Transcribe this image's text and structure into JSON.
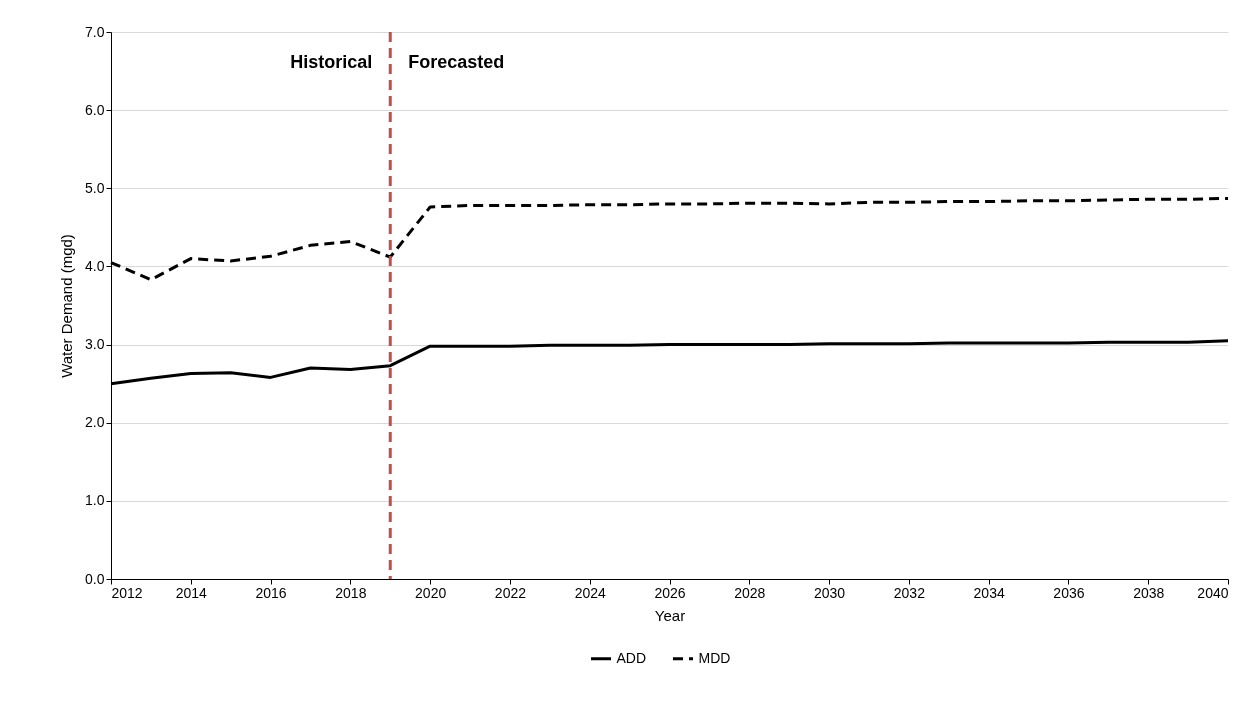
{
  "chart_data": {
    "type": "line",
    "xlabel": "Year",
    "ylabel": "Water Demand (mgd)",
    "x": [
      2012,
      2013,
      2014,
      2015,
      2016,
      2017,
      2018,
      2019,
      2020,
      2021,
      2022,
      2023,
      2024,
      2025,
      2026,
      2027,
      2028,
      2029,
      2030,
      2031,
      2032,
      2033,
      2034,
      2035,
      2036,
      2037,
      2038,
      2039,
      2040
    ],
    "series": [
      {
        "name": "ADD",
        "color": "#000000",
        "line_style": "solid",
        "values": [
          2.5,
          2.57,
          2.63,
          2.64,
          2.58,
          2.7,
          2.68,
          2.73,
          2.98,
          2.98,
          2.98,
          2.99,
          2.99,
          2.99,
          3.0,
          3.0,
          3.0,
          3.0,
          3.01,
          3.01,
          3.01,
          3.02,
          3.02,
          3.02,
          3.02,
          3.03,
          3.03,
          3.03,
          3.05
        ]
      },
      {
        "name": "MDD",
        "color": "#000000",
        "line_style": "dashed",
        "values": [
          4.05,
          3.83,
          4.1,
          4.07,
          4.13,
          4.27,
          4.32,
          4.12,
          4.76,
          4.78,
          4.78,
          4.78,
          4.79,
          4.79,
          4.8,
          4.8,
          4.81,
          4.81,
          4.8,
          4.82,
          4.82,
          4.83,
          4.83,
          4.84,
          4.84,
          4.85,
          4.86,
          4.86,
          4.87
        ]
      }
    ],
    "xlim": [
      2012,
      2040
    ],
    "xticks": [
      2012,
      2014,
      2016,
      2018,
      2020,
      2022,
      2024,
      2026,
      2028,
      2030,
      2032,
      2034,
      2036,
      2038,
      2040
    ],
    "ylim": [
      0,
      7
    ],
    "yticks": [
      {
        "value": 0,
        "label": "0.0"
      },
      {
        "value": 1,
        "label": "1.0"
      },
      {
        "value": 2,
        "label": "2.0"
      },
      {
        "value": 3,
        "label": "3.0"
      },
      {
        "value": 4,
        "label": "4.0"
      },
      {
        "value": 5,
        "label": "5.0"
      },
      {
        "value": 6,
        "label": "6.0"
      },
      {
        "value": 7,
        "label": "7.0"
      }
    ],
    "grid": "y",
    "legend": "bottom",
    "ref_lines": [
      {
        "axis": "x",
        "value": 2019,
        "color": "#c0504d",
        "line_style": "dashed"
      }
    ],
    "annotations": [
      {
        "text": "Historical",
        "x": 2019,
        "y": 6.6
      },
      {
        "text": "Forecasted",
        "x": 2019,
        "y": 6.6
      }
    ]
  }
}
